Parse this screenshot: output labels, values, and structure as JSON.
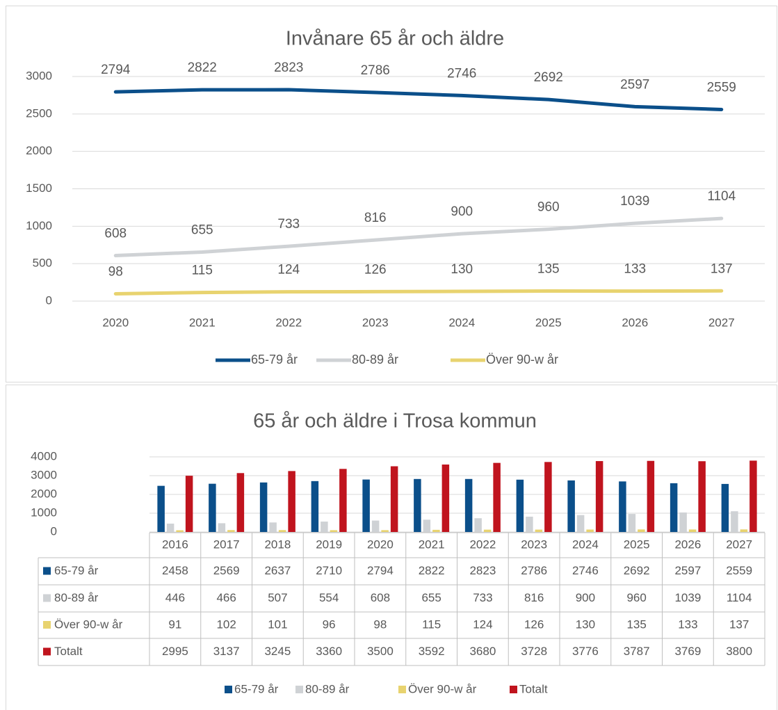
{
  "chart_data": [
    {
      "type": "line",
      "title": "Invånare 65 år och äldre",
      "categories": [
        "2020",
        "2021",
        "2022",
        "2023",
        "2024",
        "2025",
        "2026",
        "2027"
      ],
      "series": [
        {
          "name": "65-79 år",
          "color": "#0b4f8a",
          "values": [
            2794,
            2822,
            2823,
            2786,
            2746,
            2692,
            2597,
            2559
          ]
        },
        {
          "name": "80-89 år",
          "color": "#cfd2d5",
          "values": [
            608,
            655,
            733,
            816,
            900,
            960,
            1039,
            1104
          ]
        },
        {
          "name": "Över 90-w år",
          "color": "#e8d36f",
          "values": [
            98,
            115,
            124,
            126,
            130,
            135,
            133,
            137
          ]
        }
      ],
      "ylim": [
        0,
        3000
      ],
      "yticks": [
        0,
        500,
        1000,
        1500,
        2000,
        2500,
        3000
      ],
      "grid": true
    },
    {
      "type": "bar",
      "title": "65 år och äldre i Trosa kommun",
      "categories": [
        "2016",
        "2017",
        "2018",
        "2019",
        "2020",
        "2021",
        "2022",
        "2023",
        "2024",
        "2025",
        "2026",
        "2027"
      ],
      "series": [
        {
          "name": "65-79 år",
          "color": "#0b4f8a",
          "values": [
            2458,
            2569,
            2637,
            2710,
            2794,
            2822,
            2823,
            2786,
            2746,
            2692,
            2597,
            2559
          ]
        },
        {
          "name": "80-89 år",
          "color": "#cfd2d5",
          "values": [
            446,
            466,
            507,
            554,
            608,
            655,
            733,
            816,
            900,
            960,
            1039,
            1104
          ]
        },
        {
          "name": "Över 90-w år",
          "color": "#e8d36f",
          "values": [
            91,
            102,
            101,
            96,
            98,
            115,
            124,
            126,
            130,
            135,
            133,
            137
          ]
        },
        {
          "name": "Totalt",
          "color": "#c0141e",
          "values": [
            2995,
            3137,
            3245,
            3360,
            3500,
            3592,
            3680,
            3728,
            3776,
            3787,
            3769,
            3800
          ]
        }
      ],
      "ylim": [
        0,
        4000
      ],
      "yticks": [
        0,
        1000,
        2000,
        3000,
        4000
      ],
      "grid": true
    }
  ]
}
